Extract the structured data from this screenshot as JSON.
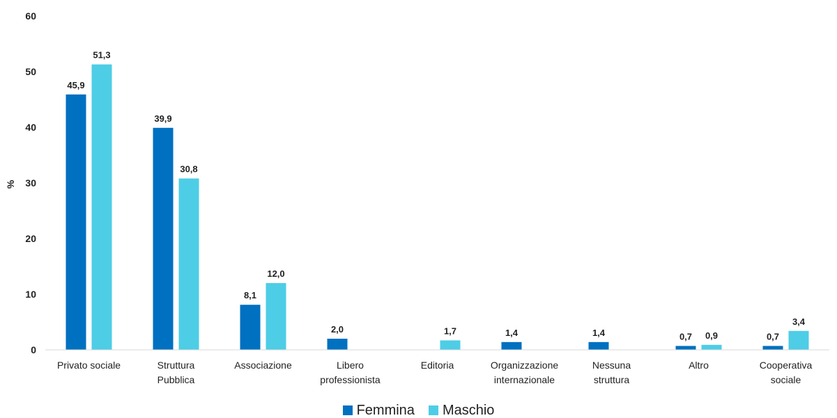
{
  "chart_data": {
    "type": "bar",
    "ylabel": "%",
    "ylim": [
      0,
      60
    ],
    "yticks": [
      "0",
      "10",
      "20",
      "30",
      "40",
      "50",
      "60"
    ],
    "grid": false,
    "legend_position": "bottom",
    "categories": [
      [
        "Privato sociale"
      ],
      [
        "Struttura",
        "Pubblica"
      ],
      [
        "Associazione"
      ],
      [
        "Libero",
        "professionista"
      ],
      [
        "Editoria"
      ],
      [
        "Organizzazione",
        "internazionale"
      ],
      [
        "Nessuna",
        "struttura"
      ],
      [
        "Altro"
      ],
      [
        "Cooperativa",
        "sociale"
      ]
    ],
    "series": [
      {
        "name": "Femmina",
        "color": "#0070c0",
        "values": [
          45.9,
          39.9,
          8.1,
          2.0,
          null,
          1.4,
          1.4,
          0.7,
          0.7
        ],
        "labels": [
          "45,9",
          "39,9",
          "8,1",
          "2,0",
          null,
          "1,4",
          "1,4",
          "0,7",
          "0,7"
        ]
      },
      {
        "name": "Maschio",
        "color": "#4ecde6",
        "values": [
          51.3,
          30.8,
          12.0,
          null,
          1.7,
          null,
          null,
          0.9,
          3.4
        ],
        "labels": [
          "51,3",
          "30,8",
          "12,0",
          null,
          "1,7",
          null,
          null,
          "0,9",
          "3,4"
        ]
      }
    ]
  }
}
